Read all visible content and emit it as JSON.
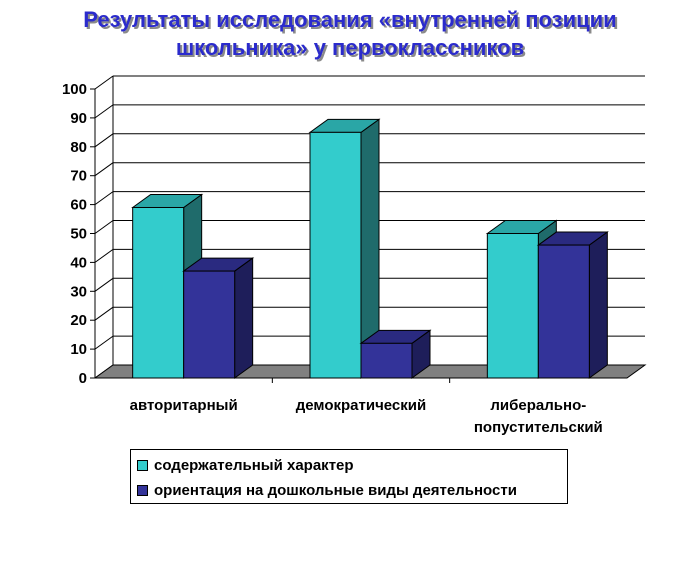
{
  "chart_data": {
    "type": "bar",
    "title_lines": [
      "Результаты исследования «внутренней позиции",
      "школьника» у первоклассников"
    ],
    "categories": [
      [
        "авторитарный"
      ],
      [
        "демократический"
      ],
      [
        "либерально-",
        "попустительский"
      ]
    ],
    "series": [
      {
        "name": "содержательный характер",
        "values": [
          59,
          85,
          50
        ]
      },
      {
        "name": "ориентация на дошкольные виды деятельности",
        "values": [
          37,
          12,
          46
        ]
      }
    ],
    "ylim": [
      0,
      100
    ],
    "yticks": [
      0,
      10,
      20,
      30,
      40,
      50,
      60,
      70,
      80,
      90,
      100
    ],
    "grid": true,
    "legend_position": "bottom",
    "colors": {
      "series0_front": "#33cccc",
      "series0_side": "#1f6b6b",
      "series0_top": "#2aa6a6",
      "series1_front": "#333399",
      "series1_side": "#1e1e5a",
      "series1_top": "#2a2a80",
      "floor": "#808080",
      "title": "#2b2bcc"
    }
  }
}
